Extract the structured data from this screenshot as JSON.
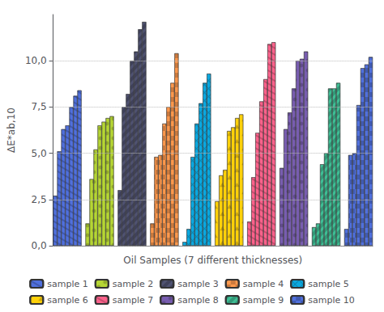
{
  "chart_data": {
    "type": "bar",
    "xlabel": "Oil Samples (7 different thicknesses)",
    "ylabel": "ΔE*ab,10",
    "ylim": [
      0,
      12.5
    ],
    "yticks": [
      {
        "value": 0.0,
        "label": "0,0"
      },
      {
        "value": 2.5,
        "label": "2,5"
      },
      {
        "value": 5.0,
        "label": "5,0"
      },
      {
        "value": 7.5,
        "label": "7,5"
      },
      {
        "value": 10.0,
        "label": "10,0"
      }
    ],
    "grid": true,
    "tick_labels": "y",
    "series": [
      {
        "name": "sample 1",
        "values": [
          2.7,
          5.1,
          6.3,
          6.5,
          7.5,
          8.1,
          8.4
        ]
      },
      {
        "name": "sample 2",
        "values": [
          1.2,
          3.6,
          5.2,
          6.5,
          6.7,
          6.9,
          7.0
        ]
      },
      {
        "name": "sample 3",
        "values": [
          3.0,
          7.5,
          8.2,
          10.0,
          10.5,
          11.7,
          12.1
        ]
      },
      {
        "name": "sample 4",
        "values": [
          1.2,
          4.8,
          4.9,
          6.6,
          7.5,
          8.8,
          10.4
        ]
      },
      {
        "name": "sample 5",
        "values": [
          0.2,
          0.9,
          4.8,
          6.6,
          7.7,
          8.8,
          9.3
        ]
      },
      {
        "name": "sample 6",
        "values": [
          2.4,
          3.8,
          4.1,
          6.2,
          6.4,
          6.9,
          7.1
        ]
      },
      {
        "name": "sample 7",
        "values": [
          1.3,
          3.7,
          6.1,
          7.8,
          9.0,
          10.9,
          11.0
        ]
      },
      {
        "name": "sample 8",
        "values": [
          4.2,
          6.3,
          7.2,
          8.5,
          10.0,
          10.1,
          10.5
        ]
      },
      {
        "name": "sample 9",
        "values": [
          1.0,
          1.2,
          4.4,
          5.0,
          8.5,
          8.5,
          8.8
        ]
      },
      {
        "name": "sample 10",
        "values": [
          0.9,
          4.9,
          5.0,
          7.6,
          9.6,
          9.8,
          10.2
        ]
      }
    ]
  }
}
